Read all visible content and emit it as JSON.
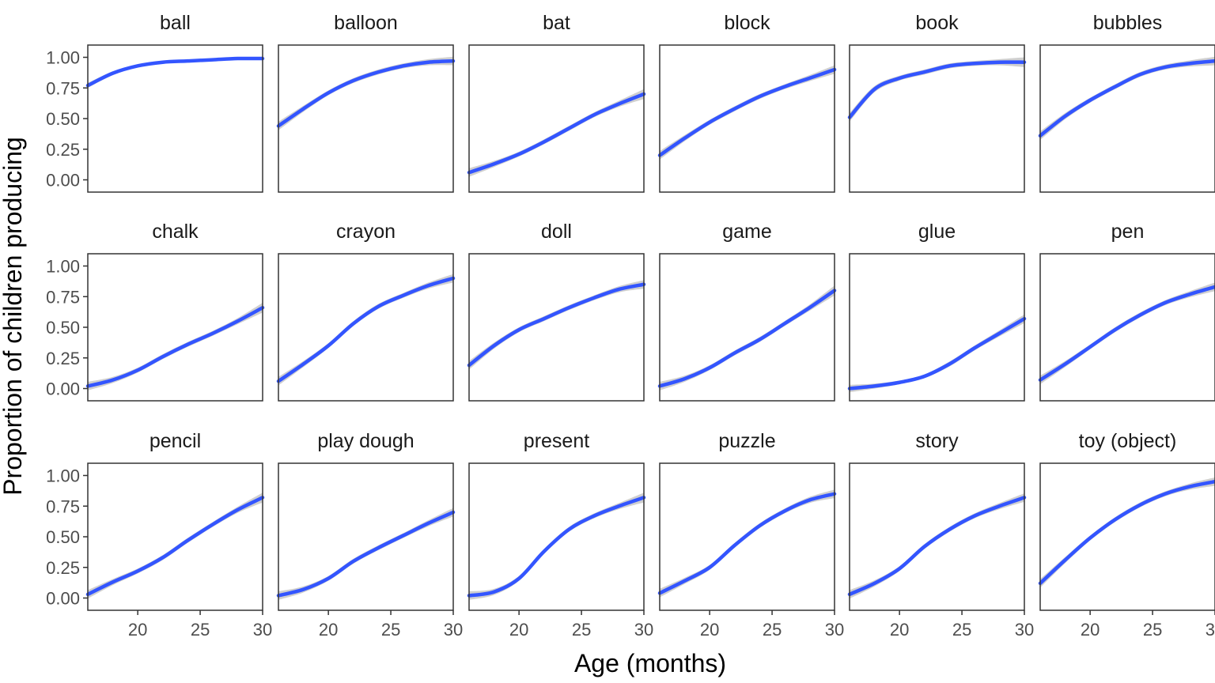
{
  "chart_data": {
    "type": "line",
    "xlabel": "Age (months)",
    "ylabel": "Proportion of children producing",
    "xlim": [
      16,
      30
    ],
    "ylim": [
      -0.1,
      1.1
    ],
    "x_ticks": [
      20,
      25,
      30
    ],
    "y_ticks": [
      "0.00",
      "0.25",
      "0.50",
      "0.75",
      "1.00"
    ],
    "y_tick_values": [
      0,
      0.25,
      0.5,
      0.75,
      1.0
    ],
    "line_color": "#3355ff",
    "band_color": "#bfbfbf",
    "grid": false,
    "x": [
      16,
      18,
      20,
      22,
      24,
      26,
      28,
      30
    ],
    "panels": [
      {
        "name": "ball",
        "values": [
          0.77,
          0.87,
          0.93,
          0.96,
          0.97,
          0.98,
          0.99,
          0.99
        ],
        "se": [
          0.02,
          0.015,
          0.01,
          0.01,
          0.01,
          0.01,
          0.01,
          0.01
        ]
      },
      {
        "name": "balloon",
        "values": [
          0.44,
          0.58,
          0.71,
          0.81,
          0.88,
          0.93,
          0.96,
          0.97
        ],
        "se": [
          0.035,
          0.025,
          0.02,
          0.02,
          0.02,
          0.02,
          0.025,
          0.035
        ]
      },
      {
        "name": "bat",
        "values": [
          0.06,
          0.13,
          0.21,
          0.31,
          0.42,
          0.53,
          0.62,
          0.7
        ],
        "se": [
          0.035,
          0.025,
          0.02,
          0.02,
          0.02,
          0.02,
          0.025,
          0.04
        ]
      },
      {
        "name": "block",
        "values": [
          0.2,
          0.34,
          0.47,
          0.58,
          0.68,
          0.76,
          0.83,
          0.9
        ],
        "se": [
          0.035,
          0.025,
          0.02,
          0.02,
          0.02,
          0.02,
          0.025,
          0.035
        ]
      },
      {
        "name": "book",
        "values": [
          0.51,
          0.74,
          0.83,
          0.88,
          0.93,
          0.95,
          0.96,
          0.96
        ],
        "se": [
          0.035,
          0.025,
          0.02,
          0.02,
          0.02,
          0.02,
          0.025,
          0.04
        ]
      },
      {
        "name": "bubbles",
        "values": [
          0.36,
          0.52,
          0.65,
          0.76,
          0.86,
          0.92,
          0.95,
          0.97
        ],
        "se": [
          0.035,
          0.025,
          0.02,
          0.02,
          0.02,
          0.02,
          0.025,
          0.035
        ]
      },
      {
        "name": "chalk",
        "values": [
          0.02,
          0.07,
          0.15,
          0.26,
          0.36,
          0.45,
          0.55,
          0.66
        ],
        "se": [
          0.035,
          0.025,
          0.02,
          0.02,
          0.02,
          0.02,
          0.025,
          0.04
        ]
      },
      {
        "name": "crayon",
        "values": [
          0.06,
          0.2,
          0.35,
          0.53,
          0.67,
          0.76,
          0.84,
          0.9
        ],
        "se": [
          0.035,
          0.025,
          0.02,
          0.02,
          0.02,
          0.02,
          0.025,
          0.035
        ]
      },
      {
        "name": "doll",
        "values": [
          0.19,
          0.35,
          0.48,
          0.57,
          0.66,
          0.74,
          0.81,
          0.85
        ],
        "se": [
          0.035,
          0.025,
          0.02,
          0.02,
          0.02,
          0.02,
          0.025,
          0.035
        ]
      },
      {
        "name": "game",
        "values": [
          0.02,
          0.08,
          0.17,
          0.29,
          0.4,
          0.53,
          0.66,
          0.8
        ],
        "se": [
          0.035,
          0.025,
          0.02,
          0.02,
          0.02,
          0.02,
          0.025,
          0.04
        ]
      },
      {
        "name": "glue",
        "values": [
          0.0,
          0.02,
          0.05,
          0.1,
          0.2,
          0.33,
          0.45,
          0.57
        ],
        "se": [
          0.03,
          0.02,
          0.015,
          0.015,
          0.02,
          0.02,
          0.025,
          0.035
        ]
      },
      {
        "name": "pen",
        "values": [
          0.07,
          0.2,
          0.34,
          0.48,
          0.6,
          0.7,
          0.77,
          0.83
        ],
        "se": [
          0.035,
          0.025,
          0.02,
          0.02,
          0.02,
          0.02,
          0.025,
          0.035
        ]
      },
      {
        "name": "pencil",
        "values": [
          0.03,
          0.13,
          0.22,
          0.33,
          0.47,
          0.6,
          0.72,
          0.82
        ],
        "se": [
          0.035,
          0.025,
          0.02,
          0.02,
          0.02,
          0.02,
          0.025,
          0.04
        ]
      },
      {
        "name": "play dough",
        "values": [
          0.02,
          0.07,
          0.16,
          0.3,
          0.41,
          0.51,
          0.61,
          0.7
        ],
        "se": [
          0.035,
          0.025,
          0.02,
          0.02,
          0.02,
          0.02,
          0.025,
          0.035
        ]
      },
      {
        "name": "present",
        "values": [
          0.02,
          0.05,
          0.16,
          0.38,
          0.56,
          0.67,
          0.75,
          0.82
        ],
        "se": [
          0.035,
          0.025,
          0.02,
          0.02,
          0.02,
          0.02,
          0.025,
          0.04
        ]
      },
      {
        "name": "puzzle",
        "values": [
          0.04,
          0.14,
          0.25,
          0.43,
          0.59,
          0.71,
          0.8,
          0.85
        ],
        "se": [
          0.035,
          0.025,
          0.02,
          0.02,
          0.02,
          0.02,
          0.025,
          0.035
        ]
      },
      {
        "name": "story",
        "values": [
          0.03,
          0.12,
          0.24,
          0.42,
          0.56,
          0.67,
          0.75,
          0.82
        ],
        "se": [
          0.035,
          0.025,
          0.02,
          0.02,
          0.02,
          0.02,
          0.025,
          0.035
        ]
      },
      {
        "name": "toy (object)",
        "values": [
          0.12,
          0.31,
          0.49,
          0.64,
          0.76,
          0.85,
          0.91,
          0.95
        ],
        "se": [
          0.035,
          0.025,
          0.02,
          0.02,
          0.02,
          0.02,
          0.025,
          0.035
        ]
      }
    ]
  }
}
